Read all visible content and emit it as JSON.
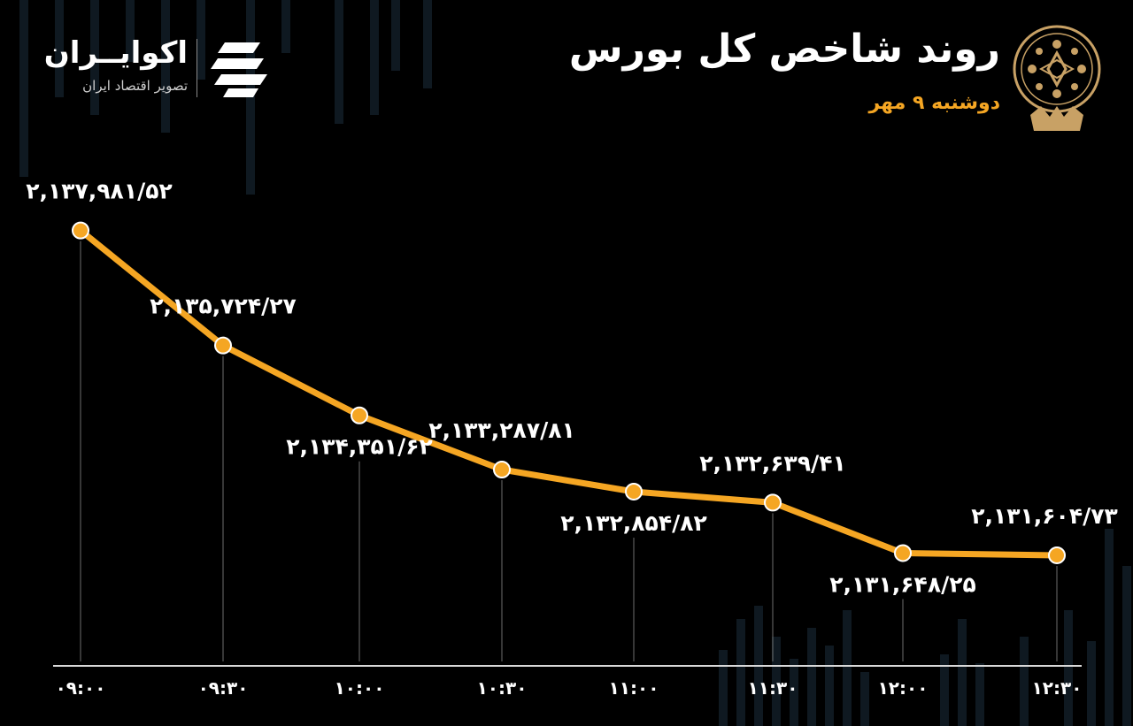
{
  "header": {
    "title": "روند شاخص کل بورس",
    "subtitle": "دوشنبه ۹ مهر"
  },
  "brand": {
    "name": "اکوایــران",
    "tagline": "تصویر اقتصاد ایران"
  },
  "colors": {
    "background": "#000000",
    "line": "#f5a623",
    "point_fill": "#f5a623",
    "point_stroke": "#ffffff",
    "text": "#ffffff",
    "accent": "#f5a623"
  },
  "chart_data": {
    "type": "line",
    "title": "روند شاخص کل بورس",
    "subtitle": "دوشنبه ۹ مهر",
    "categories": [
      "۰۹:۰۰",
      "۰۹:۳۰",
      "۱۰:۰۰",
      "۱۰:۳۰",
      "۱۱:۰۰",
      "۱۱:۳۰",
      "۱۲:۰۰",
      "۱۲:۳۰"
    ],
    "values": [
      2137981.52,
      2135724.27,
      2134351.62,
      2133287.81,
      2132854.82,
      2132639.41,
      2131648.25,
      2131604.73
    ],
    "value_labels": [
      "۲,۱۳۷,۹۸۱/۵۲",
      "۲,۱۳۵,۷۲۴/۲۷",
      "۲,۱۳۴,۳۵۱/۶۲",
      "۲,۱۳۳,۲۸۷/۸۱",
      "۲,۱۳۲,۸۵۴/۸۲",
      "۲,۱۳۲,۶۳۹/۴۱",
      "۲,۱۳۱,۶۴۸/۲۵",
      "۲,۱۳۱,۶۰۴/۷۳"
    ],
    "label_positions": [
      "above",
      "above",
      "below",
      "above",
      "below",
      "above",
      "below",
      "above"
    ],
    "ylim": [
      2129400,
      2138600
    ],
    "grid": false,
    "legend": "none"
  }
}
